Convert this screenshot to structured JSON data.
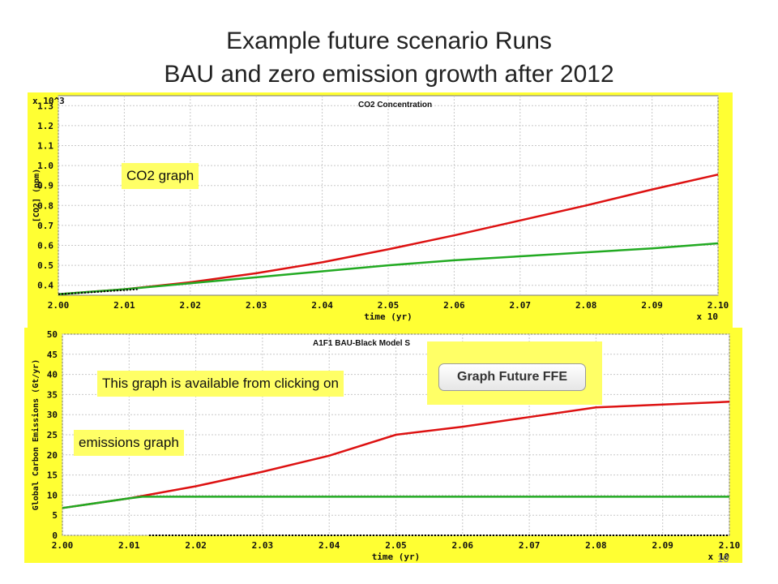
{
  "slide": {
    "title_line1": "Example future scenario Runs",
    "title_line2": "BAU  and zero emission growth after 2012",
    "page_number": "10"
  },
  "annotations": {
    "co2_graph": "CO2 graph",
    "available": "This graph is available from clicking on",
    "emissions_graph": "emissions graph",
    "button_label": "Graph Future FFE"
  },
  "colors": {
    "bau": "#dd1111",
    "zero_growth": "#22aa22",
    "highlight": "#ffff33"
  },
  "chart_data": [
    {
      "type": "line",
      "title": "CO2 Concentration",
      "xlabel": "time (yr)",
      "ylabel": "[CO2] (ppm)",
      "y_multiplier": "x 10^3",
      "x_multiplier": "x 10",
      "x_ticks": [
        "2.00",
        "2.01",
        "2.02",
        "2.03",
        "2.04",
        "2.05",
        "2.06",
        "2.07",
        "2.08",
        "2.09",
        "2.10"
      ],
      "y_ticks": [
        "0.4",
        "0.5",
        "0.6",
        "0.7",
        "0.8",
        "0.9",
        "1.0",
        "1.1",
        "1.2",
        "1.3"
      ],
      "xlim": [
        2.0,
        2.1
      ],
      "ylim": [
        0.35,
        1.35
      ],
      "grid": true,
      "series": [
        {
          "color": "#dd1111",
          "x": [
            2.0,
            2.01,
            2.02,
            2.03,
            2.04,
            2.05,
            2.06,
            2.07,
            2.08,
            2.09,
            2.1
          ],
          "y": [
            0.355,
            0.38,
            0.415,
            0.46,
            0.515,
            0.58,
            0.65,
            0.725,
            0.8,
            0.88,
            0.955
          ]
        },
        {
          "color": "#22aa22",
          "x": [
            2.0,
            2.01,
            2.02,
            2.03,
            2.04,
            2.05,
            2.06,
            2.07,
            2.08,
            2.09,
            2.1
          ],
          "y": [
            0.355,
            0.38,
            0.41,
            0.44,
            0.47,
            0.5,
            0.525,
            0.545,
            0.565,
            0.585,
            0.61
          ]
        },
        {
          "style": "dotted",
          "color": "#000000",
          "x": [
            2.0,
            2.005,
            2.012
          ],
          "y": [
            0.355,
            0.365,
            0.38
          ]
        }
      ]
    },
    {
      "type": "line",
      "title": "A1F1 BAU-Black     Model S",
      "xlabel": "time (yr)",
      "ylabel": "Global Carbon Emissions (Gt/yr)",
      "x_multiplier": "x 10",
      "x_ticks": [
        "2.00",
        "2.01",
        "2.02",
        "2.03",
        "2.04",
        "2.05",
        "2.06",
        "2.07",
        "2.08",
        "2.09",
        "2.10"
      ],
      "y_ticks": [
        "0",
        "5",
        "10",
        "15",
        "20",
        "25",
        "30",
        "35",
        "40",
        "45",
        "50"
      ],
      "xlim": [
        2.0,
        2.1
      ],
      "ylim": [
        0,
        50
      ],
      "grid": true,
      "series": [
        {
          "color": "#dd1111",
          "x": [
            2.0,
            2.01,
            2.02,
            2.03,
            2.04,
            2.05,
            2.06,
            2.07,
            2.08,
            2.09,
            2.1
          ],
          "y": [
            6.8,
            9.2,
            12.2,
            15.8,
            19.8,
            25.0,
            27.0,
            29.4,
            31.8,
            32.5,
            33.2
          ]
        },
        {
          "color": "#22aa22",
          "x": [
            2.0,
            2.01,
            2.012,
            2.02,
            2.05,
            2.1
          ],
          "y": [
            6.8,
            9.2,
            9.6,
            9.6,
            9.6,
            9.6
          ]
        },
        {
          "style": "dotted",
          "color": "#000000",
          "x": [
            2.013,
            2.1
          ],
          "y": [
            0,
            0
          ]
        }
      ]
    }
  ]
}
